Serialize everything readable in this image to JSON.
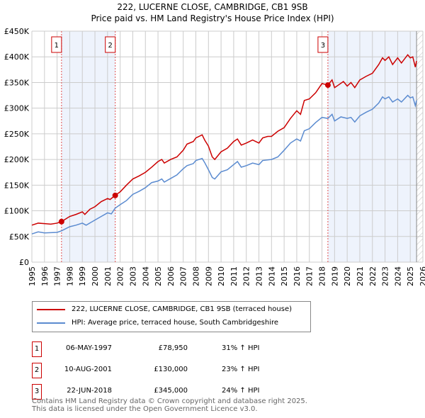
{
  "chart_data": {
    "type": "line",
    "title": "222, LUCERNE CLOSE, CAMBRIDGE, CB1 9SB",
    "subtitle": "Price paid vs. HM Land Registry's House Price Index (HPI)",
    "xlim": [
      1995,
      2026
    ],
    "ylim": [
      0,
      450000
    ],
    "x_ticks": [
      "1995",
      "1996",
      "1997",
      "1998",
      "1999",
      "2000",
      "2001",
      "2002",
      "2003",
      "2004",
      "2005",
      "2006",
      "2007",
      "2008",
      "2009",
      "2010",
      "2011",
      "2012",
      "2013",
      "2014",
      "2015",
      "2016",
      "2017",
      "2018",
      "2019",
      "2020",
      "2021",
      "2022",
      "2023",
      "2024",
      "2025",
      "2026"
    ],
    "y_ticks": [
      {
        "v": 0,
        "label": "£0"
      },
      {
        "v": 50000,
        "label": "£50K"
      },
      {
        "v": 100000,
        "label": "£100K"
      },
      {
        "v": 150000,
        "label": "£150K"
      },
      {
        "v": 200000,
        "label": "£200K"
      },
      {
        "v": 250000,
        "label": "£250K"
      },
      {
        "v": 300000,
        "label": "£300K"
      },
      {
        "v": 350000,
        "label": "£350K"
      },
      {
        "v": 400000,
        "label": "£400K"
      },
      {
        "v": 450000,
        "label": "£450K"
      }
    ],
    "grid": true,
    "series": [
      {
        "name": "222, LUCERNE CLOSE, CAMBRIDGE, CB1 9SB (terraced house)",
        "color": "#cc0000",
        "points": [
          [
            1995,
            72
          ],
          [
            1995.5,
            76
          ],
          [
            1996,
            75
          ],
          [
            1996.5,
            74
          ],
          [
            1997,
            76
          ],
          [
            1997.35,
            79
          ],
          [
            1998,
            89
          ],
          [
            1998.5,
            93
          ],
          [
            1999,
            98
          ],
          [
            1999.2,
            93
          ],
          [
            1999.6,
            103
          ],
          [
            2000,
            108
          ],
          [
            2000.5,
            118
          ],
          [
            2001,
            124
          ],
          [
            2001.2,
            122
          ],
          [
            2001.6,
            130
          ],
          [
            2002,
            137
          ],
          [
            2002.5,
            150
          ],
          [
            2003,
            162
          ],
          [
            2003.5,
            168
          ],
          [
            2004,
            175
          ],
          [
            2004.5,
            185
          ],
          [
            2005,
            196
          ],
          [
            2005.3,
            200
          ],
          [
            2005.5,
            193
          ],
          [
            2006,
            200
          ],
          [
            2006.5,
            205
          ],
          [
            2007,
            218
          ],
          [
            2007.3,
            230
          ],
          [
            2007.8,
            235
          ],
          [
            2008,
            242
          ],
          [
            2008.5,
            248
          ],
          [
            2008.7,
            238
          ],
          [
            2009,
            226
          ],
          [
            2009.3,
            205
          ],
          [
            2009.5,
            200
          ],
          [
            2010,
            215
          ],
          [
            2010.5,
            222
          ],
          [
            2011,
            235
          ],
          [
            2011.3,
            240
          ],
          [
            2011.6,
            228
          ],
          [
            2012,
            232
          ],
          [
            2012.5,
            238
          ],
          [
            2013,
            232
          ],
          [
            2013.3,
            242
          ],
          [
            2013.7,
            245
          ],
          [
            2014,
            245
          ],
          [
            2014.5,
            255
          ],
          [
            2015,
            262
          ],
          [
            2015.5,
            280
          ],
          [
            2016,
            295
          ],
          [
            2016.3,
            288
          ],
          [
            2016.6,
            315
          ],
          [
            2017,
            318
          ],
          [
            2017.5,
            330
          ],
          [
            2018,
            348
          ],
          [
            2018.47,
            345
          ],
          [
            2018.8,
            355
          ],
          [
            2019,
            340
          ],
          [
            2019.3,
            345
          ],
          [
            2019.7,
            352
          ],
          [
            2020,
            343
          ],
          [
            2020.3,
            350
          ],
          [
            2020.6,
            340
          ],
          [
            2021,
            355
          ],
          [
            2021.5,
            362
          ],
          [
            2022,
            368
          ],
          [
            2022.5,
            385
          ],
          [
            2022.8,
            398
          ],
          [
            2023,
            393
          ],
          [
            2023.3,
            400
          ],
          [
            2023.6,
            385
          ],
          [
            2024,
            398
          ],
          [
            2024.3,
            388
          ],
          [
            2024.8,
            404
          ],
          [
            2025,
            398
          ],
          [
            2025.2,
            400
          ],
          [
            2025.4,
            380
          ],
          [
            2025.5,
            392
          ]
        ]
      },
      {
        "name": "HPI: Average price, terraced house, South Cambridgeshire",
        "color": "#5b8bd0",
        "points": [
          [
            1995,
            55
          ],
          [
            1995.5,
            59
          ],
          [
            1996,
            57
          ],
          [
            1997,
            58
          ],
          [
            1997.35,
            61
          ],
          [
            1998,
            69
          ],
          [
            1998.5,
            72
          ],
          [
            1999,
            76
          ],
          [
            1999.3,
            72
          ],
          [
            2000,
            82
          ],
          [
            2000.5,
            89
          ],
          [
            2001,
            96
          ],
          [
            2001.3,
            94
          ],
          [
            2001.6,
            105
          ],
          [
            2002,
            112
          ],
          [
            2002.5,
            120
          ],
          [
            2003,
            132
          ],
          [
            2003.5,
            138
          ],
          [
            2004,
            145
          ],
          [
            2004.5,
            155
          ],
          [
            2005,
            158
          ],
          [
            2005.3,
            162
          ],
          [
            2005.5,
            156
          ],
          [
            2006,
            163
          ],
          [
            2006.5,
            170
          ],
          [
            2007,
            182
          ],
          [
            2007.3,
            188
          ],
          [
            2007.8,
            192
          ],
          [
            2008,
            198
          ],
          [
            2008.5,
            202
          ],
          [
            2008.7,
            194
          ],
          [
            2009,
            180
          ],
          [
            2009.3,
            165
          ],
          [
            2009.5,
            162
          ],
          [
            2010,
            176
          ],
          [
            2010.5,
            180
          ],
          [
            2011,
            190
          ],
          [
            2011.3,
            196
          ],
          [
            2011.6,
            185
          ],
          [
            2012,
            188
          ],
          [
            2012.5,
            193
          ],
          [
            2013,
            190
          ],
          [
            2013.3,
            198
          ],
          [
            2014,
            200
          ],
          [
            2014.5,
            205
          ],
          [
            2015,
            218
          ],
          [
            2015.5,
            232
          ],
          [
            2016,
            240
          ],
          [
            2016.3,
            236
          ],
          [
            2016.6,
            256
          ],
          [
            2017,
            260
          ],
          [
            2017.5,
            272
          ],
          [
            2018,
            282
          ],
          [
            2018.47,
            280
          ],
          [
            2018.8,
            288
          ],
          [
            2019,
            275
          ],
          [
            2019.5,
            283
          ],
          [
            2020,
            280
          ],
          [
            2020.3,
            282
          ],
          [
            2020.6,
            273
          ],
          [
            2021,
            285
          ],
          [
            2021.5,
            292
          ],
          [
            2022,
            298
          ],
          [
            2022.5,
            310
          ],
          [
            2022.8,
            322
          ],
          [
            2023,
            318
          ],
          [
            2023.3,
            322
          ],
          [
            2023.6,
            312
          ],
          [
            2024,
            318
          ],
          [
            2024.3,
            312
          ],
          [
            2024.8,
            325
          ],
          [
            2025,
            320
          ],
          [
            2025.2,
            322
          ],
          [
            2025.4,
            305
          ],
          [
            2025.5,
            315
          ]
        ]
      }
    ],
    "units_note": "points y in £K",
    "sales": [
      {
        "label": "1",
        "x": 1997.35,
        "y": 78950,
        "date": "06-MAY-1997",
        "price": "£78,950",
        "hpi": "31% ↑ HPI"
      },
      {
        "label": "2",
        "x": 2001.61,
        "y": 130000,
        "date": "10-AUG-2001",
        "price": "£130,000",
        "hpi": "23% ↑ HPI"
      },
      {
        "label": "3",
        "x": 2018.47,
        "y": 345000,
        "date": "22-JUN-2018",
        "price": "£345,000",
        "hpi": "24% ↑ HPI"
      }
    ],
    "shaded_ranges": [
      [
        1997.35,
        2001.61
      ],
      [
        2018.47,
        2025.5
      ]
    ],
    "hatched_from": 2025.5,
    "legend_placement": "below"
  },
  "footer": {
    "line1": "Contains HM Land Registry data © Crown copyright and database right 2025.",
    "line2": "This data is licensed under the Open Government Licence v3.0."
  }
}
